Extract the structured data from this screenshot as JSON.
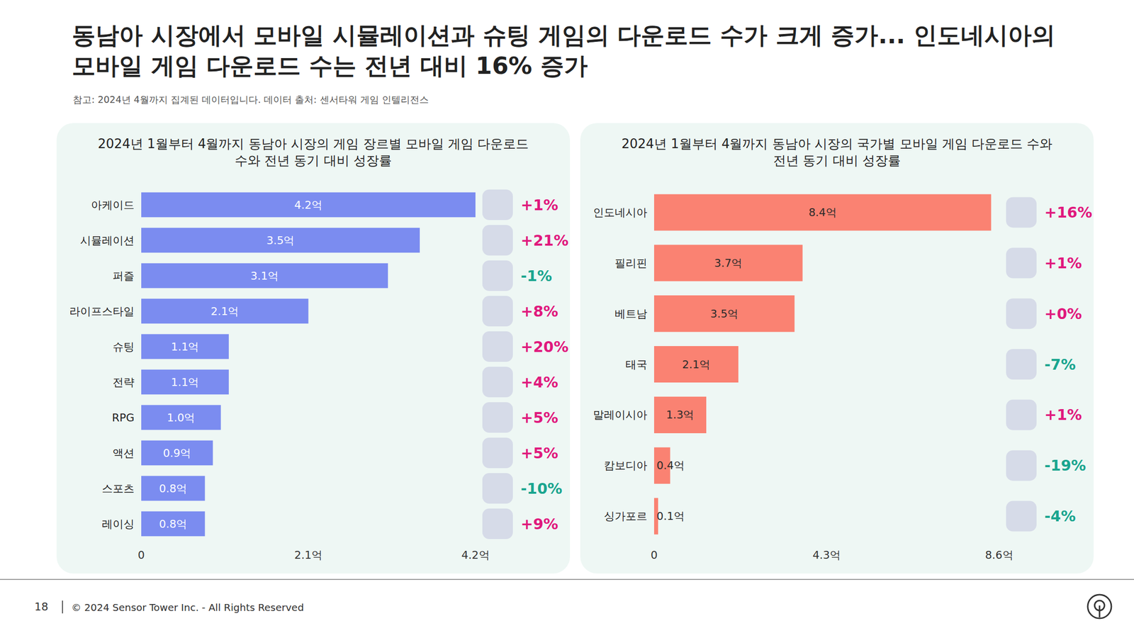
{
  "header": {
    "title": "동남아 시장에서 모바일 시뮬레이션과 슈팅 게임의 다운로드 수가 크게 증가... 인도네시아의 모바일 게임 다운로드 수는 전년 대비 16% 증가",
    "note": "참고: 2024년 4월까지 집계된 데이터입니다. 데이터 출처: 센서타워 게임 인텔리전스"
  },
  "chart_data": [
    {
      "type": "bar",
      "orientation": "horizontal",
      "title": "2024년 1월부터 4월까지 동남아 시장의 게임 장르별 모바일 게임 다운로드 수와 전년 동기 대비 성장률",
      "categories": [
        "아케이드",
        "시뮬레이션",
        "퍼즐",
        "라이프스타일",
        "슈팅",
        "전략",
        "RPG",
        "액션",
        "스포츠",
        "레이싱"
      ],
      "values": [
        4.2,
        3.5,
        3.1,
        2.1,
        1.1,
        1.1,
        1.0,
        0.9,
        0.8,
        0.8
      ],
      "value_labels": [
        "4.2억",
        "3.5억",
        "3.1억",
        "2.1억",
        "1.1억",
        "1.1억",
        "1.0억",
        "0.9억",
        "0.8억",
        "0.8억"
      ],
      "color": "#7b8cf0",
      "xlim": [
        0,
        4.2
      ],
      "xticks": [
        0,
        {
          "value": 2.1,
          "label": "2.1억"
        },
        {
          "value": 4.2,
          "label": "4.2억"
        }
      ],
      "grid": false,
      "data_labels": true,
      "growth": [
        1,
        21,
        -1,
        8,
        20,
        4,
        5,
        5,
        -10,
        9
      ],
      "growth_labels": [
        "+1%",
        "+21%",
        "-1%",
        "+8%",
        "+20%",
        "+4%",
        "+5%",
        "+5%",
        "-10%",
        "+9%"
      ]
    },
    {
      "type": "bar",
      "orientation": "horizontal",
      "title": "2024년 1월부터 4월까지 동남아 시장의 국가별 모바일 게임 다운로드 수와 전년 동기 대비 성장률",
      "categories": [
        "인도네시아",
        "필리핀",
        "베트남",
        "태국",
        "말레이시아",
        "캄보디아",
        "싱가포르"
      ],
      "values": [
        8.4,
        3.7,
        3.5,
        2.1,
        1.3,
        0.4,
        0.1
      ],
      "value_labels": [
        "8.4억",
        "3.7억",
        "3.5억",
        "2.1억",
        "1.3억",
        "0.4억",
        "0.1억"
      ],
      "color": "#fa8272",
      "xlim": [
        0,
        8.6
      ],
      "xticks": [
        0,
        {
          "value": 4.3,
          "label": "4.3억"
        },
        {
          "value": 8.6,
          "label": "8.6억"
        }
      ],
      "grid": false,
      "data_labels": true,
      "growth": [
        16,
        1,
        0,
        -7,
        1,
        -19,
        -4
      ],
      "growth_labels": [
        "+16%",
        "+1%",
        "+0%",
        "-7%",
        "+1%",
        "-19%",
        "-4%"
      ]
    }
  ],
  "footer": {
    "page": "18",
    "copyright": "© 2024 Sensor Tower Inc. - All Rights Reserved"
  }
}
